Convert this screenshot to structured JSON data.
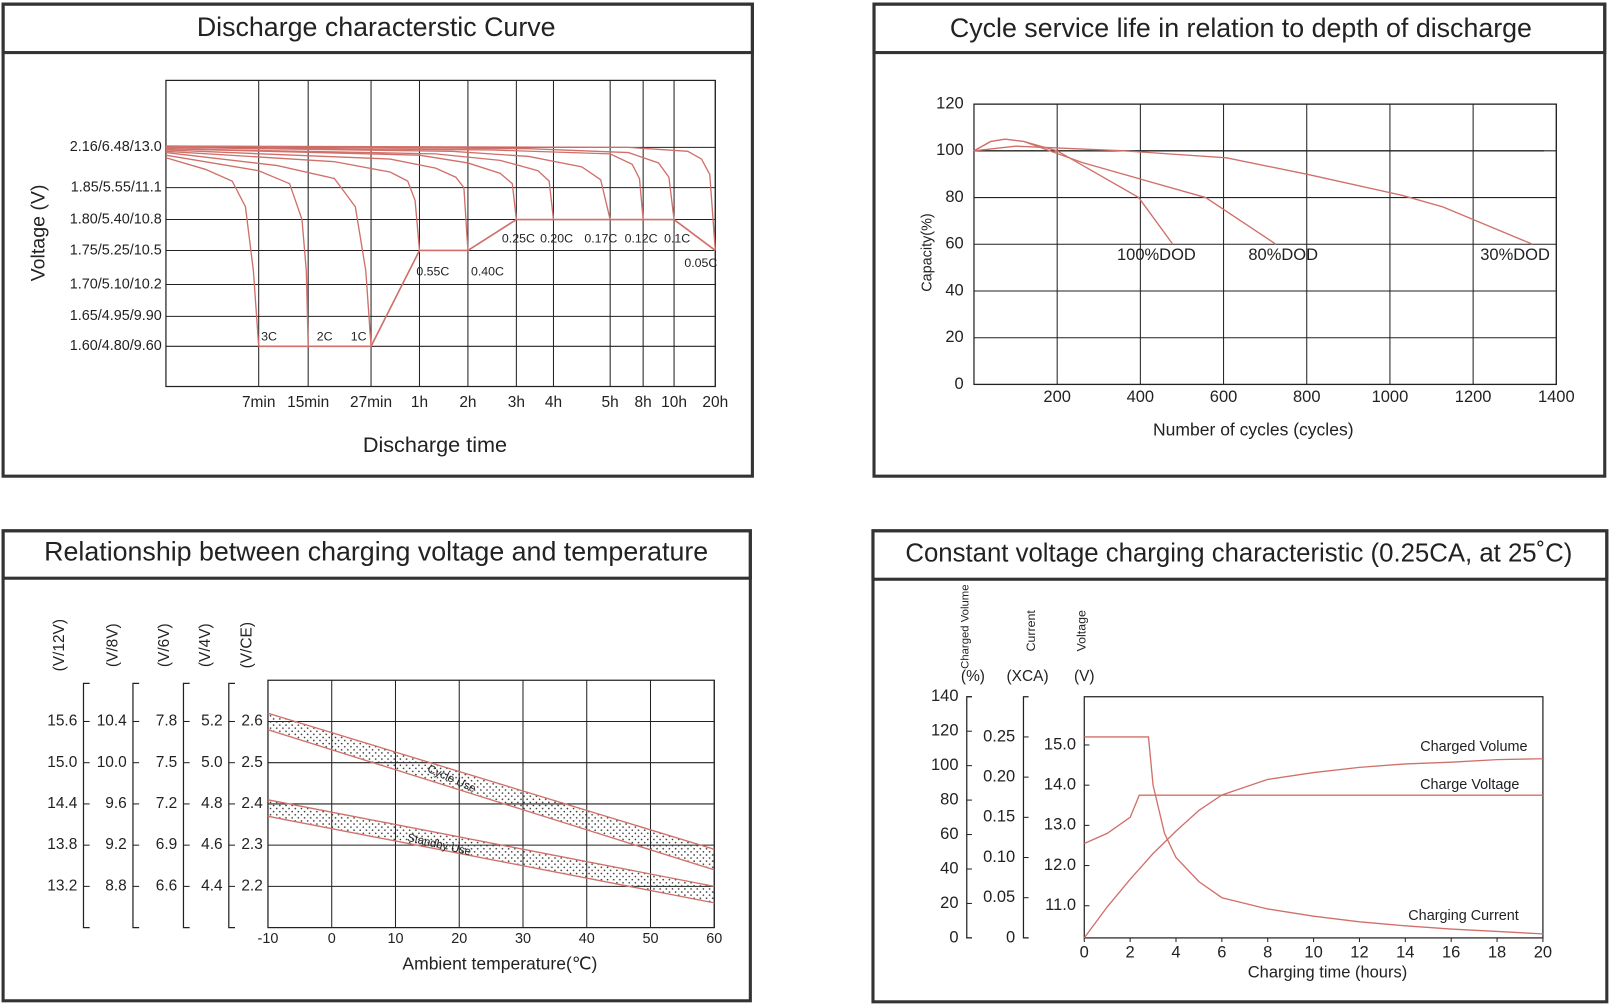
{
  "chart_data": [
    {
      "type": "line",
      "title": "Discharge characterstic Curve",
      "xlabel": "Discharge time",
      "ylabel": "Voltage (V)",
      "color": "#d0706a",
      "xlim": [
        0,
        1200
      ],
      "xticks": [
        {
          "value": 7,
          "label": "7min"
        },
        {
          "value": 15,
          "label": "15min"
        },
        {
          "value": 27,
          "label": "27min"
        },
        {
          "value": 60,
          "label": "1h"
        },
        {
          "value": 120,
          "label": "2h"
        },
        {
          "value": 180,
          "label": "3h"
        },
        {
          "value": 240,
          "label": "4h"
        },
        {
          "value": 300,
          "label": "5h"
        },
        {
          "value": 480,
          "label": "8h"
        },
        {
          "value": 600,
          "label": "10h"
        },
        {
          "value": 1200,
          "label": "20h"
        }
      ],
      "yticks": [
        {
          "value": 2.16,
          "label": "2.16/6.48/13.0"
        },
        {
          "value": 1.85,
          "label": "1.85/5.55/11.1"
        },
        {
          "value": 1.8,
          "label": "1.80/5.40/10.8"
        },
        {
          "value": 1.75,
          "label": "1.75/5.25/10.5"
        },
        {
          "value": 1.7,
          "label": "1.70/5.10/10.2"
        },
        {
          "value": 1.65,
          "label": "1.65/4.95/9.90"
        },
        {
          "value": 1.6,
          "label": "1.60/4.80/9.60"
        }
      ],
      "grid": true,
      "series": [
        {
          "name": "3C",
          "x": [
            0,
            3,
            5,
            6,
            6.6,
            7
          ],
          "values": [
            2.08,
            1.99,
            1.9,
            1.82,
            1.72,
            1.6
          ]
        },
        {
          "name": "2C",
          "x": [
            0,
            7,
            12,
            14,
            14.7,
            15
          ],
          "values": [
            2.1,
            1.98,
            1.88,
            1.8,
            1.72,
            1.6
          ]
        },
        {
          "name": "1C",
          "x": [
            0,
            10,
            20,
            24,
            26,
            27
          ],
          "values": [
            2.12,
            2.02,
            1.92,
            1.82,
            1.72,
            1.6
          ]
        },
        {
          "name": "0.55C",
          "x": [
            0,
            20,
            40,
            52,
            57,
            60
          ],
          "values": [
            2.13,
            2.05,
            1.97,
            1.9,
            1.83,
            1.75
          ]
        },
        {
          "name": "0.40C",
          "x": [
            0,
            40,
            80,
            105,
            115,
            120
          ],
          "values": [
            2.14,
            2.07,
            2.0,
            1.93,
            1.85,
            1.75
          ]
        },
        {
          "name": "0.25C",
          "x": [
            0,
            60,
            120,
            160,
            175,
            180
          ],
          "values": [
            2.15,
            2.1,
            2.04,
            1.96,
            1.88,
            1.8
          ]
        },
        {
          "name": "0.20C",
          "x": [
            0,
            80,
            160,
            215,
            233,
            240
          ],
          "values": [
            2.15,
            2.11,
            2.06,
            1.98,
            1.9,
            1.8
          ]
        },
        {
          "name": "0.17C",
          "x": [
            0,
            100,
            200,
            270,
            290,
            300
          ],
          "values": [
            2.16,
            2.13,
            2.09,
            2.01,
            1.91,
            1.8
          ]
        },
        {
          "name": "0.12C",
          "x": [
            0,
            150,
            300,
            420,
            460,
            480
          ],
          "values": [
            2.16,
            2.14,
            2.11,
            2.03,
            1.92,
            1.8
          ]
        },
        {
          "name": "0.1C",
          "x": [
            0,
            200,
            400,
            540,
            580,
            600
          ],
          "values": [
            2.17,
            2.15,
            2.12,
            2.04,
            1.93,
            1.8
          ]
        },
        {
          "name": "0.05C",
          "x": [
            0,
            400,
            800,
            1000,
            1120,
            1200
          ],
          "values": [
            2.17,
            2.16,
            2.13,
            2.07,
            1.95,
            1.75
          ]
        }
      ]
    },
    {
      "type": "line",
      "title": "Cycle service life in relation to depth of discharge",
      "xlabel": "Number of cycles (cycles)",
      "ylabel": "Capacity(%)",
      "color": "#d0706a",
      "xlim": [
        0,
        1400
      ],
      "xticks": [
        200,
        400,
        600,
        800,
        1000,
        1200,
        1400
      ],
      "ylim": [
        0,
        120
      ],
      "yticks": [
        0,
        20,
        40,
        60,
        80,
        100,
        120
      ],
      "grid": true,
      "hline": 100,
      "series": [
        {
          "name": "100%DOD",
          "x": [
            0,
            40,
            75,
            120,
            200,
            396,
            478
          ],
          "values": [
            100,
            104,
            105,
            104,
            100,
            80,
            60
          ]
        },
        {
          "name": "80%DOD",
          "x": [
            0,
            40,
            75,
            120,
            260,
            557,
            726
          ],
          "values": [
            100,
            104,
            105,
            104,
            95,
            80,
            60
          ]
        },
        {
          "name": "30%DOD",
          "x": [
            0,
            100,
            360,
            607,
            800,
            1028,
            1127,
            1343
          ],
          "values": [
            100,
            102,
            100,
            97,
            90,
            81,
            76,
            60
          ]
        }
      ]
    },
    {
      "type": "area",
      "title": "Relationship between charging voltage and temperature",
      "xlabel": "Ambient temperature(℃)",
      "ylabel": "(V/CE)",
      "color": "#d0706a",
      "xlim": [
        -10,
        60
      ],
      "xticks": [
        -10,
        0,
        10,
        20,
        30,
        40,
        50,
        60
      ],
      "ylim": [
        2.1,
        2.7
      ],
      "yticks": [
        2.2,
        2.3,
        2.4,
        2.5,
        2.6
      ],
      "grid": true,
      "axes": [
        {
          "label": "(V/12V)",
          "ylim": [
            12.6,
            16.2
          ],
          "ticks": [
            13.2,
            13.8,
            14.4,
            {
              "value": 15,
              "label": "15.0"
            },
            15.6
          ]
        },
        {
          "label": "(V/8V)",
          "ylim": [
            8.4,
            10.8
          ],
          "ticks": [
            8.8,
            9.2,
            9.6,
            {
              "value": 10,
              "label": "10.0"
            },
            10.4
          ]
        },
        {
          "label": "(V/6V)",
          "ylim": [
            6.3,
            8.1
          ],
          "ticks": [
            6.6,
            6.9,
            7.2,
            7.5,
            7.8
          ]
        },
        {
          "label": "(V/4V)",
          "ylim": [
            4.2,
            5.4
          ],
          "ticks": [
            4.4,
            4.6,
            4.8,
            {
              "value": 5,
              "label": "5.0"
            },
            5.2
          ]
        }
      ],
      "series": [
        {
          "name": "Cycle Use",
          "x": [
            -10,
            60
          ],
          "high": [
            2.62,
            2.29
          ],
          "low": [
            2.58,
            2.24
          ]
        },
        {
          "name": "Standby Use",
          "x": [
            -10,
            60
          ],
          "high": [
            2.41,
            2.2
          ],
          "low": [
            2.37,
            2.16
          ]
        }
      ]
    },
    {
      "type": "line",
      "title": "Constant voltage charging characteristic (0.25CA, at 25˚C)",
      "xlabel": "Charging time (hours)",
      "color": "#d0706a",
      "xlim": [
        0,
        20
      ],
      "xticks": [
        0,
        2,
        4,
        6,
        8,
        10,
        12,
        14,
        16,
        18,
        20
      ],
      "ylabel": "Charged Volume",
      "yunit": "(%)",
      "ylim": [
        0,
        140
      ],
      "yticks": [
        0,
        20,
        40,
        60,
        80,
        100,
        120,
        140
      ],
      "y2label": "Current",
      "y2unit": "(XCA)",
      "y2lim": [
        0,
        0.3
      ],
      "y2ticks": [
        0,
        0.05,
        {
          "value": 0.1,
          "label": "0.10"
        },
        0.15,
        {
          "value": 0.2,
          "label": "0.20"
        },
        0.25
      ],
      "y3label": "Voltage",
      "y3unit": "(V)",
      "y3lim": [
        10.2,
        16.2
      ],
      "y3ticks": [
        {
          "value": 11,
          "label": "11.0"
        },
        {
          "value": 12,
          "label": "12.0"
        },
        {
          "value": 13,
          "label": "13.0"
        },
        {
          "value": 14,
          "label": "14.0"
        },
        {
          "value": 15,
          "label": "15.0"
        }
      ],
      "series": [
        {
          "name": "Charged Volume",
          "axis": "y",
          "x": [
            0,
            1,
            2,
            3,
            4,
            5,
            6,
            8,
            10,
            12,
            14,
            16,
            18,
            20
          ],
          "values": [
            0,
            18,
            34,
            49,
            62,
            74,
            83,
            92,
            96,
            99,
            101,
            102,
            103.5,
            104
          ]
        },
        {
          "name": "Charge Voltage",
          "axis": "y3",
          "x": [
            0,
            1,
            2,
            2.4,
            20
          ],
          "values": [
            12.55,
            12.8,
            13.2,
            13.75,
            13.75
          ]
        },
        {
          "name": "Charging Current",
          "axis": "y2",
          "x": [
            0,
            2.8,
            3,
            3.5,
            4,
            5,
            6,
            8,
            10,
            12,
            14,
            16,
            18,
            20
          ],
          "values": [
            0.25,
            0.25,
            0.19,
            0.13,
            0.1,
            0.07,
            0.05,
            0.036,
            0.027,
            0.02,
            0.015,
            0.011,
            0.008,
            0.005
          ]
        }
      ]
    }
  ]
}
